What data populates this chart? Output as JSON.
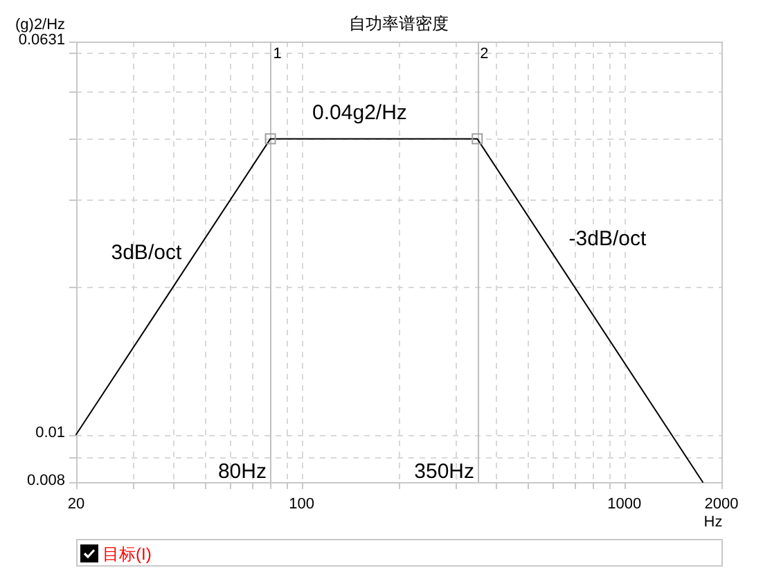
{
  "chart_data": {
    "type": "line",
    "title": "自功率谱密度",
    "xlabel": "Hz",
    "ylabel": "(g)2/Hz",
    "log": "xy",
    "grid": true,
    "legend": "bottom",
    "xlim": [
      20,
      2000
    ],
    "ylim": [
      0.008,
      0.0631
    ],
    "xticks": [
      20,
      {
        "value": 30,
        "label": null
      },
      {
        "value": 40,
        "label": null
      },
      {
        "value": 50,
        "label": null
      },
      {
        "value": 60,
        "label": null
      },
      {
        "value": 70,
        "label": null
      },
      {
        "value": 80,
        "label": null
      },
      {
        "value": 90,
        "label": null
      },
      100,
      {
        "value": 200,
        "label": null
      },
      {
        "value": 300,
        "label": null
      },
      {
        "value": 400,
        "label": null
      },
      {
        "value": 500,
        "label": null
      },
      {
        "value": 600,
        "label": null
      },
      {
        "value": 700,
        "label": null
      },
      {
        "value": 800,
        "label": null
      },
      {
        "value": 900,
        "label": null
      },
      1000,
      2000
    ],
    "yticks": [
      0.008,
      {
        "value": 0.009,
        "label": null
      },
      0.01,
      {
        "value": 0.02,
        "label": null
      },
      {
        "value": 0.03,
        "label": null
      },
      {
        "value": 0.04,
        "label": null
      },
      {
        "value": 0.05,
        "label": null
      },
      {
        "value": 0.06,
        "label": null
      },
      0.0631
    ],
    "series": [
      {
        "name": "目标(I)",
        "color": "#000000",
        "x": [
          20,
          80,
          350,
          1750
        ],
        "values": [
          0.01,
          0.04,
          0.04,
          0.008
        ]
      },
      {
        "type": "scatter",
        "marker": "square",
        "color": "#a0a0a0",
        "x": [
          80,
          350
        ],
        "values": [
          0.04,
          0.04
        ]
      }
    ],
    "ref_lines": [
      {
        "axis": "x",
        "value": 80,
        "label": "80Hz",
        "color": "#c0c0c0"
      },
      {
        "axis": "x",
        "value": 350,
        "label": "350Hz",
        "color": "#c0c0c0"
      }
    ],
    "annotations": [
      {
        "text": "1",
        "x": 80,
        "y": 0.0631
      },
      {
        "text": "2",
        "x": 350,
        "y": 0.0631
      },
      {
        "text": "0.04g2/Hz",
        "x": 167,
        "y": 0.04
      },
      {
        "text": "3dB/oct",
        "x": 40,
        "y": 0.02
      },
      {
        "text": "-3dB/oct",
        "x": 700,
        "y": 0.02
      }
    ]
  }
}
